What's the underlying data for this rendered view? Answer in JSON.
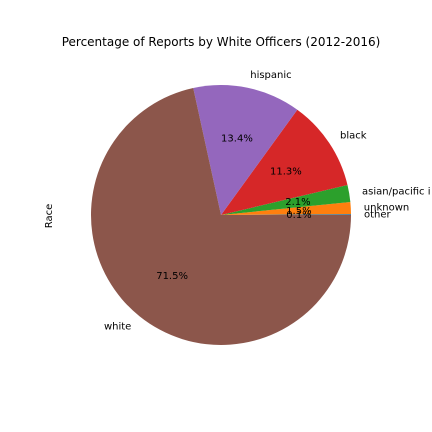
{
  "chart_data": {
    "type": "pie",
    "title": "Percentage of Reports by White Officers (2012-2016)",
    "ylabel": "Race",
    "slices": [
      {
        "label": "other",
        "value": 0.1,
        "pct_label": "0.1%",
        "color": "#1f77b4"
      },
      {
        "label": "unknown",
        "value": 1.5,
        "pct_label": "1.5%",
        "color": "#ff7f0e"
      },
      {
        "label": "asian/pacific i",
        "value": 2.1,
        "pct_label": "2.1%",
        "color": "#2ca02c"
      },
      {
        "label": "black",
        "value": 11.3,
        "pct_label": "11.3%",
        "color": "#d62728"
      },
      {
        "label": "hispanic",
        "value": 13.4,
        "pct_label": "13.4%",
        "color": "#9467bd"
      },
      {
        "label": "white",
        "value": 71.5,
        "pct_label": "71.5%",
        "color": "#8c564b"
      }
    ],
    "start_angle_deg": 0,
    "direction": "counterclockwise",
    "legend": "none"
  }
}
